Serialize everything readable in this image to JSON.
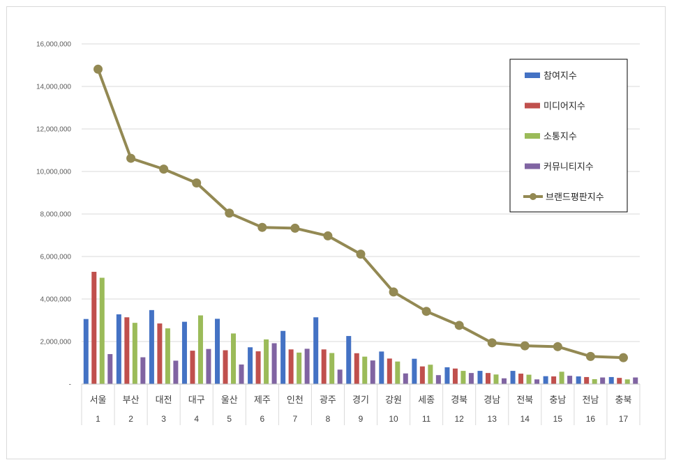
{
  "chart_data": {
    "type": "bar",
    "title": "",
    "xlabel": "",
    "ylabel": "",
    "ylim": [
      0,
      16000000
    ],
    "yticks": [
      {
        "value": 0,
        "label": "-"
      },
      {
        "value": 2000000,
        "label": "2,000,000"
      },
      {
        "value": 4000000,
        "label": "4,000,000"
      },
      {
        "value": 6000000,
        "label": "6,000,000"
      },
      {
        "value": 8000000,
        "label": "8,000,000"
      },
      {
        "value": 10000000,
        "label": "10,000,000"
      },
      {
        "value": 12000000,
        "label": "12,000,000"
      },
      {
        "value": 14000000,
        "label": "14,000,000"
      },
      {
        "value": 16000000,
        "label": "16,000,000"
      }
    ],
    "grid": true,
    "legend_position": "top-right",
    "categories": [
      "서울",
      "부산",
      "대전",
      "대구",
      "울산",
      "제주",
      "인천",
      "광주",
      "경기",
      "강원",
      "세종",
      "경북",
      "경남",
      "전북",
      "충남",
      "전남",
      "충북"
    ],
    "ranks": [
      "1",
      "2",
      "3",
      "4",
      "5",
      "6",
      "7",
      "8",
      "9",
      "10",
      "11",
      "12",
      "13",
      "14",
      "15",
      "16",
      "17"
    ],
    "series": [
      {
        "name": "참여지수",
        "kind": "bar",
        "color": "#4472c4",
        "values": [
          3060000,
          3280000,
          3480000,
          2930000,
          3070000,
          1730000,
          2500000,
          3140000,
          2260000,
          1530000,
          1190000,
          790000,
          620000,
          620000,
          370000,
          360000,
          330000
        ]
      },
      {
        "name": "미디어지수",
        "kind": "bar",
        "color": "#c0504d",
        "values": [
          5280000,
          3140000,
          2850000,
          1570000,
          1590000,
          1540000,
          1630000,
          1630000,
          1450000,
          1200000,
          830000,
          730000,
          520000,
          490000,
          360000,
          330000,
          290000
        ]
      },
      {
        "name": "소통지수",
        "kind": "bar",
        "color": "#9bbb59",
        "values": [
          5000000,
          2880000,
          2620000,
          3230000,
          2380000,
          2100000,
          1480000,
          1460000,
          1290000,
          1060000,
          910000,
          620000,
          450000,
          440000,
          580000,
          230000,
          220000
        ]
      },
      {
        "name": "커뮤니티지수",
        "kind": "bar",
        "color": "#8064a2",
        "values": [
          1410000,
          1260000,
          1100000,
          1650000,
          920000,
          1920000,
          1660000,
          680000,
          1110000,
          500000,
          420000,
          520000,
          270000,
          220000,
          390000,
          310000,
          310000
        ]
      },
      {
        "name": "브랜드평판지수",
        "kind": "line",
        "color": "#938953",
        "values": [
          14810000,
          10620000,
          10110000,
          9460000,
          8040000,
          7370000,
          7330000,
          6970000,
          6110000,
          4330000,
          3420000,
          2760000,
          1940000,
          1800000,
          1760000,
          1300000,
          1240000
        ]
      }
    ]
  }
}
